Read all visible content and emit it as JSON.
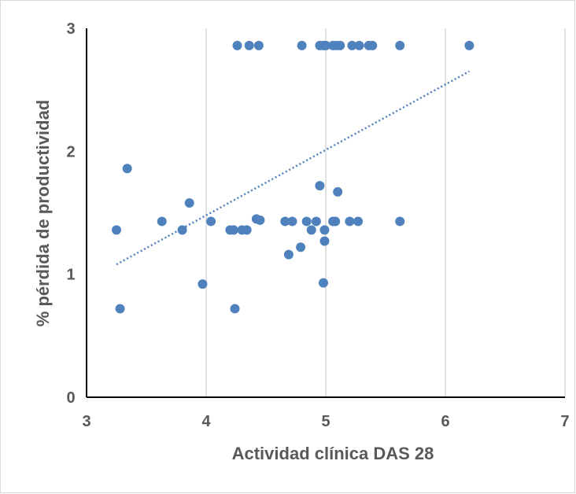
{
  "chart_data": {
    "type": "scatter",
    "title": "",
    "xlabel": "Actividad clínica DAS 28",
    "ylabel": "% pérdida de productividad",
    "xlim": [
      3,
      7
    ],
    "ylim": [
      0,
      3
    ],
    "xticks": [
      3,
      4,
      5,
      6,
      7
    ],
    "yticks": [
      0,
      1,
      2,
      3
    ],
    "x_grid": true,
    "y_grid": false,
    "legend": "none",
    "series": [
      {
        "color": "#4f81bd",
        "points": [
          [
            4.26,
            2.86
          ],
          [
            4.36,
            2.86
          ],
          [
            4.44,
            2.86
          ],
          [
            4.8,
            2.86
          ],
          [
            4.95,
            2.86
          ],
          [
            4.98,
            2.86
          ],
          [
            5.0,
            2.86
          ],
          [
            5.06,
            2.86
          ],
          [
            5.09,
            2.86
          ],
          [
            5.12,
            2.86
          ],
          [
            5.22,
            2.86
          ],
          [
            5.28,
            2.86
          ],
          [
            5.36,
            2.86
          ],
          [
            5.39,
            2.86
          ],
          [
            5.62,
            2.86
          ],
          [
            6.2,
            2.86
          ],
          [
            3.34,
            1.86
          ],
          [
            4.95,
            1.72
          ],
          [
            5.1,
            1.67
          ],
          [
            3.86,
            1.58
          ],
          [
            4.42,
            1.45
          ],
          [
            4.45,
            1.44
          ],
          [
            3.63,
            1.43
          ],
          [
            4.04,
            1.43
          ],
          [
            4.66,
            1.43
          ],
          [
            4.72,
            1.43
          ],
          [
            4.84,
            1.43
          ],
          [
            4.92,
            1.43
          ],
          [
            5.06,
            1.43
          ],
          [
            5.08,
            1.43
          ],
          [
            5.2,
            1.43
          ],
          [
            5.27,
            1.43
          ],
          [
            5.62,
            1.43
          ],
          [
            3.25,
            1.36
          ],
          [
            3.8,
            1.36
          ],
          [
            4.2,
            1.36
          ],
          [
            4.23,
            1.36
          ],
          [
            4.3,
            1.36
          ],
          [
            4.34,
            1.36
          ],
          [
            4.88,
            1.36
          ],
          [
            4.99,
            1.36
          ],
          [
            4.99,
            1.27
          ],
          [
            4.79,
            1.22
          ],
          [
            4.69,
            1.16
          ],
          [
            3.97,
            0.92
          ],
          [
            4.98,
            0.93
          ],
          [
            3.28,
            0.72
          ],
          [
            4.24,
            0.72
          ]
        ]
      }
    ],
    "trendline": {
      "style": "dotted",
      "color": "#4f81bd",
      "from": [
        3.25,
        1.08
      ],
      "to": [
        6.2,
        2.65
      ]
    }
  }
}
